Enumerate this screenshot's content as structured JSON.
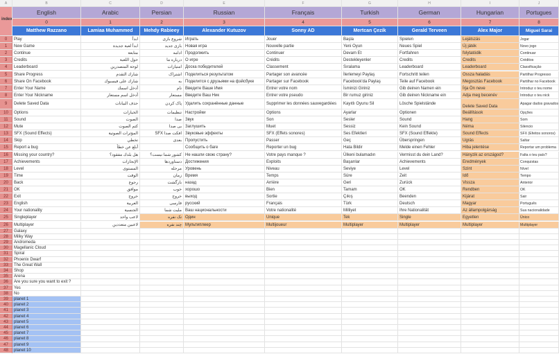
{
  "column_letters": [
    "A",
    "B",
    "C",
    "D",
    "E",
    "F",
    "G",
    "H",
    "I",
    "J"
  ],
  "index_label": "index",
  "languages": [
    "English",
    "Arabic",
    "Persian",
    "Russian",
    "Français",
    "Turkish",
    "German",
    "Hungarian",
    "Portugues"
  ],
  "language_indices": [
    "0",
    "1",
    "2",
    "3",
    "4",
    "5",
    "6",
    "7",
    "8"
  ],
  "translators": [
    "Matthew Razzano",
    "Lamiaa Muhammed",
    "Mehdy Rabieey",
    "Alexander Kutuzov",
    "Sonny AD",
    "Mertcan Çezik",
    "Gerald Terveen",
    "Alex Major",
    "Miguel Sarai"
  ],
  "colors": {
    "language_header": "#b4a7d6",
    "index_header": "#ea9999",
    "translator_header": "#3c78d8",
    "row_numbers": "#e6928f",
    "highlight_orange": "#f9cb9c",
    "highlight_blue": "#a4c2f4"
  },
  "rows": [
    [
      "0",
      [
        "Play",
        "ابدأ",
        "شروع بازی",
        "Играть",
        "Jouer",
        "Başla",
        "Spielen",
        "Lejátszás",
        "Jogar"
      ]
    ],
    [
      "1",
      [
        "New Game",
        "ابدأ لعبة جديدة",
        "بازی جدید",
        "Новая игра",
        "Nouvelle partie",
        "Yeni Oyun",
        "Neues Spiel",
        "Új játék",
        "Novo jogo"
      ]
    ],
    [
      "2",
      [
        "Continue",
        "متابعة",
        "ادامه",
        "Продолжить",
        "Continuer",
        "Devam Et",
        "Fortfahren",
        "folytatódik",
        "Continuar"
      ]
    ],
    [
      "3",
      [
        "Credits",
        "حول اللعبة",
        "درباره ما",
        "О игре",
        "Crédits",
        "Destekleyenler",
        "Credits",
        "Credits",
        "Créditos"
      ]
    ],
    [
      "4",
      [
        "Leaderboard",
        "لوحة المتصدرين",
        "امتیازات",
        "Доска победителей",
        "Classement",
        "Sıralama",
        "Leaderboard",
        "Leaderboard",
        "Classificação"
      ]
    ],
    [
      "5",
      [
        "Share Progress",
        "شارك التقدم",
        "اشتراک",
        "Поделиться результатом",
        "Partager son avancée",
        "İlerlemeyi Paylaş",
        "Fortschritt teilen",
        "Ossza haladás",
        "Partilhar Progresso"
      ]
    ],
    [
      "6",
      [
        "Share On Facebook",
        "شارك على فيسبوك",
        "به",
        "Поделится с друзьями на фэйсбуке",
        "Partager sur Facebook",
        "Facebook'da Paylaş",
        "Teile auf Facebook",
        "Megosztás Facebook",
        "Partilhar no Facebook"
      ]
    ],
    [
      "7",
      [
        "Enter Your Name",
        "أدخل اسمك",
        "نام",
        "Введите Ваше Имя",
        "Entrer votre nom",
        "İsminizi Giriniz",
        "Gib deinen Namen ein",
        "Írja Ön neve",
        "Introduz o teu nome"
      ]
    ],
    [
      "8",
      [
        "Enter Your Nickname",
        "أدخل اسم مستعار",
        "مستعار",
        "Введите Ваш Ник",
        "Entrer votre pseudo",
        "Bir rumuz giriniz",
        "Gib deinen Nickname ein",
        "Adja meg becenév",
        "Introduz o teu nick"
      ]
    ],
    [
      "9",
      [
        "Delete Saved Data",
        "حذف البيانات",
        "پاک کردن",
        "Удалить сохранённые данные",
        "Supprimer les données sauvegardées",
        "Kayıtlı Oyunu Sil",
        "Lösche Spielstände",
        "Delete Saved Data",
        "Apagar dados gravados"
      ]
    ],
    [
      "10",
      [
        "Options",
        "الخيارات",
        "تنظیمات",
        "Настройки",
        "Options",
        "Ayarlar",
        "Optionen",
        "Beállítások",
        "Opções"
      ]
    ],
    [
      "11",
      [
        "Sound",
        "الصوت",
        "صدا",
        "Звук",
        "Son",
        "Sesler",
        "Sound",
        "Hang",
        "Som"
      ]
    ],
    [
      "12",
      [
        "Mute",
        "كتم الصوت",
        "بی صدا",
        "Заглушить",
        "Muet",
        "Sessiz",
        "Kein Sound",
        "Néma",
        "Silencio"
      ]
    ],
    [
      "13",
      [
        "SFX (Sound Effects)",
        "المؤثرات الصوتية",
        "افکت صدا SFX",
        "Звуковые эффекты",
        "SFX (Effets sonores)",
        "Ses Efektleri",
        "SFX (Sound Effekte)",
        "Sound Effects",
        "SFX (Efeitos sonoros)"
      ]
    ],
    [
      "14",
      [
        "Skip",
        "تخطي",
        "بعدی",
        "Пропустить",
        "Passer",
        "Geç",
        "Überspringen",
        "Ugrás",
        "Saltar"
      ]
    ],
    [
      "15",
      [
        "Report a bug",
        "أبلغ عن خطأ",
        "",
        "Сообщить о баге",
        "Reporter un bug",
        "Hata Bildir",
        "Melde einen Fehler",
        "Hiba jelentése",
        "Reportar um problema"
      ]
    ],
    [
      "16",
      [
        "Missing your country?",
        "هل بلدك مفقود؟",
        "کشور شما نیست؟",
        "Не нашли свою страну?",
        "Votre pays manque ?",
        "Ülkeni bulamadın",
        "Vermisst du dein Land?",
        "Hányzik az országod?",
        "Falta o teu país?"
      ]
    ],
    [
      "17",
      [
        "Achievements",
        "الإنجازات",
        "دستاوردها",
        "Достижения",
        "Exploits",
        "Başarılar",
        "Achievements",
        "Eredmények",
        "Conquistas"
      ]
    ],
    [
      "18",
      [
        "Level",
        "المستوى",
        "مرحله",
        "Уровень",
        "Niveau",
        "Seviye",
        "Level",
        "Szint",
        "Nível"
      ]
    ],
    [
      "19",
      [
        "Time",
        "الوقت",
        "زمان",
        "Время",
        "Temps",
        "Süre",
        "Zeit",
        "Idő",
        "Tempo"
      ]
    ],
    [
      "20",
      [
        "Back",
        "رجوع",
        "بازگشت",
        "назад",
        "Arrière",
        "Geri",
        "Zurück",
        "Vissza",
        "Anterior"
      ]
    ],
    [
      "21",
      [
        "OK",
        "موافق",
        "خوب",
        "хорошо",
        "Bien",
        "Tamam",
        "OK",
        "Rendben",
        "OK"
      ]
    ],
    [
      "22",
      [
        "Exit",
        "خروج",
        "خروج",
        "выход",
        "Sortie",
        "Çıkış",
        "Beenden",
        "Kijárat",
        "Sair"
      ]
    ],
    [
      "23",
      [
        "English",
        "العربية",
        "فارسی",
        "русский",
        "Français",
        "Türk",
        "Deutsch",
        "Magyar",
        "Português"
      ]
    ],
    [
      "24",
      [
        "Your nationality",
        "الجنسية",
        "ملیت شما",
        "Ваш национальности",
        "Votre nationalité",
        "Milliyet",
        "Ihre Nationalität",
        "Az állampolgárság",
        "Sua nacionalidade"
      ]
    ],
    [
      "25",
      [
        "Singleplayer",
        "لاعب واحد",
        "تک نفره",
        "Один",
        "Unique",
        "Tek",
        "Single",
        "Egyetlen",
        "Único"
      ]
    ],
    [
      "26",
      [
        "Multiplayer",
        "لاعبين متعددين",
        "چند نفره",
        "Мультиплеер",
        "Multijoueur",
        "Multiplayer",
        "Multiplayer",
        "Multiplayer",
        "Multiplayer"
      ]
    ],
    [
      "27",
      [
        "Galaxy"
      ]
    ],
    [
      "28",
      [
        "Milky Way"
      ]
    ],
    [
      "29",
      [
        "Andromeda"
      ]
    ],
    [
      "30",
      [
        "Magellanic Cloud"
      ]
    ],
    [
      "31",
      [
        "Spiral"
      ]
    ],
    [
      "32",
      [
        "Phoenix Dwarf"
      ]
    ],
    [
      "33",
      [
        "The Great Wall"
      ]
    ],
    [
      "34",
      [
        "Shop"
      ]
    ],
    [
      "35",
      [
        "Arena"
      ]
    ],
    [
      "36",
      [
        "Are you sure you want to exit ?"
      ]
    ],
    [
      "37",
      [
        "Yes"
      ]
    ],
    [
      "38",
      [
        "No"
      ]
    ],
    [
      "39",
      [
        "planet 1"
      ]
    ],
    [
      "40",
      [
        "planet 2"
      ]
    ],
    [
      "41",
      [
        "planet 3"
      ]
    ],
    [
      "42",
      [
        "planet 4"
      ]
    ],
    [
      "43",
      [
        "planet 5"
      ]
    ],
    [
      "44",
      [
        "planet 6"
      ]
    ],
    [
      "45",
      [
        "planet 7"
      ]
    ],
    [
      "46",
      [
        "planet 8"
      ]
    ],
    [
      "47",
      [
        "planet 9"
      ]
    ],
    [
      "48",
      [
        "planet 10"
      ]
    ]
  ]
}
